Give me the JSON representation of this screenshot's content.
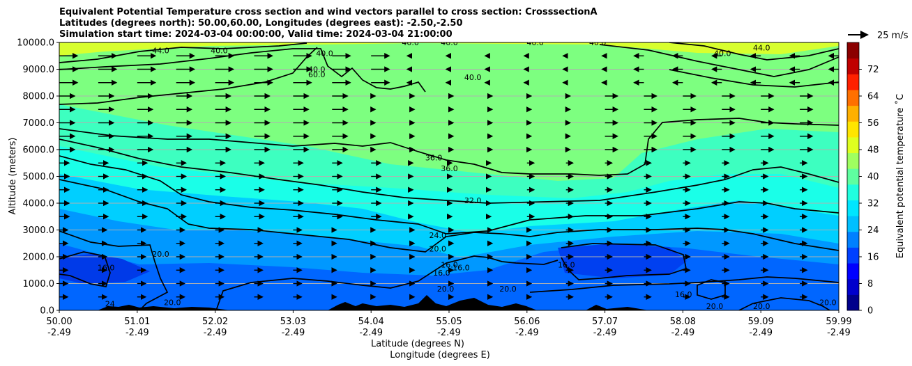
{
  "chart_data": {
    "type": "heatmap",
    "title_lines": [
      "Equivalent Potential Temperature cross section and wind vectors parallel to cross section: CrosssectionA",
      "Latitudes (degrees north): 50.00,60.00, Longitudes (degrees east): -2.50,-2.50",
      "Simulation start time: 2024-03-04 00:00:00, Valid time: 2024-03-04 21:00:00"
    ],
    "xlabel_lines": [
      "Latitude (degrees N)",
      "Longitude (degrees E)"
    ],
    "ylabel": "Altitude (meters)",
    "x_tick_labels": [
      {
        "lat": "50.00",
        "lon": "-2.49"
      },
      {
        "lat": "51.01",
        "lon": "-2.49"
      },
      {
        "lat": "52.02",
        "lon": "-2.49"
      },
      {
        "lat": "53.03",
        "lon": "-2.49"
      },
      {
        "lat": "54.04",
        "lon": "-2.49"
      },
      {
        "lat": "55.05",
        "lon": "-2.49"
      },
      {
        "lat": "56.06",
        "lon": "-2.49"
      },
      {
        "lat": "57.07",
        "lon": "-2.49"
      },
      {
        "lat": "58.08",
        "lon": "-2.49"
      },
      {
        "lat": "59.09",
        "lon": "-2.49"
      },
      {
        "lat": "59.99",
        "lon": "-2.49"
      }
    ],
    "y_ticks": [
      0,
      1000,
      2000,
      3000,
      4000,
      5000,
      6000,
      7000,
      8000,
      9000,
      10000
    ],
    "y_tick_labels": [
      "0.0",
      "1000.0",
      "2000.0",
      "3000.0",
      "4000.0",
      "5000.0",
      "6000.0",
      "7000.0",
      "8000.0",
      "9000.0",
      "10000.0"
    ],
    "ylim": [
      0,
      10000
    ],
    "grid": "horizontal",
    "colorbar": {
      "label": "Equivalent potential temperature $^\\circ$C",
      "label_display": "Equivalent potential temperature ˚C",
      "range": [
        0,
        80
      ],
      "ticks": [
        0,
        8,
        16,
        24,
        32,
        40,
        48,
        56,
        64,
        72
      ],
      "colors": [
        "#00008b",
        "#0000cd",
        "#0000ff",
        "#0040ff",
        "#0080ff",
        "#00bfff",
        "#00e5ff",
        "#20ffdf",
        "#5fffa0",
        "#9fff60",
        "#dfff20",
        "#ffe500",
        "#ffb000",
        "#ff7000",
        "#ff2000",
        "#c00000",
        "#8b0000"
      ]
    },
    "quiver_key": {
      "label": "25 m/s",
      "speed": 25
    },
    "contour_labels": [
      {
        "text": "44.0",
        "lat": 51.3,
        "alt": 9700
      },
      {
        "text": "40.0",
        "lat": 52.05,
        "alt": 9700
      },
      {
        "text": "40.0",
        "lat": 53.3,
        "alt": 9000
      },
      {
        "text": "40.0",
        "lat": 53.4,
        "alt": 9600
      },
      {
        "text": "40.0",
        "lat": 54.5,
        "alt": 10000
      },
      {
        "text": "40.0",
        "lat": 55.0,
        "alt": 10000
      },
      {
        "text": "40.0",
        "lat": 55.3,
        "alt": 8700
      },
      {
        "text": "40.0",
        "lat": 56.1,
        "alt": 10000
      },
      {
        "text": "40.0",
        "lat": 56.9,
        "alt": 10000
      },
      {
        "text": "40.0",
        "lat": 58.5,
        "alt": 9600
      },
      {
        "text": "44.0",
        "lat": 59.0,
        "alt": 9800
      },
      {
        "text": "36.0",
        "lat": 54.8,
        "alt": 5700
      },
      {
        "text": "36.0",
        "lat": 55.0,
        "alt": 5300
      },
      {
        "text": "32.0",
        "lat": 55.3,
        "alt": 4100
      },
      {
        "text": "24.0",
        "lat": 54.85,
        "alt": 2800
      },
      {
        "text": "20.0",
        "lat": 54.85,
        "alt": 2300
      },
      {
        "text": "16.0",
        "lat": 55.0,
        "alt": 1700
      },
      {
        "text": "16.0",
        "lat": 55.15,
        "alt": 1600
      },
      {
        "text": "16.0",
        "lat": 54.9,
        "alt": 1400
      },
      {
        "text": "20.0",
        "lat": 54.95,
        "alt": 800
      },
      {
        "text": "20.0",
        "lat": 51.3,
        "alt": 2100
      },
      {
        "text": "16.0",
        "lat": 50.6,
        "alt": 1600
      },
      {
        "text": "20.0",
        "lat": 55.75,
        "alt": 800
      },
      {
        "text": "16.0",
        "lat": 56.5,
        "alt": 1700
      },
      {
        "text": "16.0",
        "lat": 58.0,
        "alt": 600
      },
      {
        "text": "20.0",
        "lat": 58.4,
        "alt": 150
      },
      {
        "text": "20.0",
        "lat": 59.0,
        "alt": 150
      },
      {
        "text": "20.0",
        "lat": 59.85,
        "alt": 300
      },
      {
        "text": "24",
        "lat": 50.65,
        "alt": 250
      },
      {
        "text": "20.0",
        "lat": 51.45,
        "alt": 300
      },
      {
        "text": "60.0",
        "lat": 53.3,
        "alt": 8800
      }
    ]
  }
}
